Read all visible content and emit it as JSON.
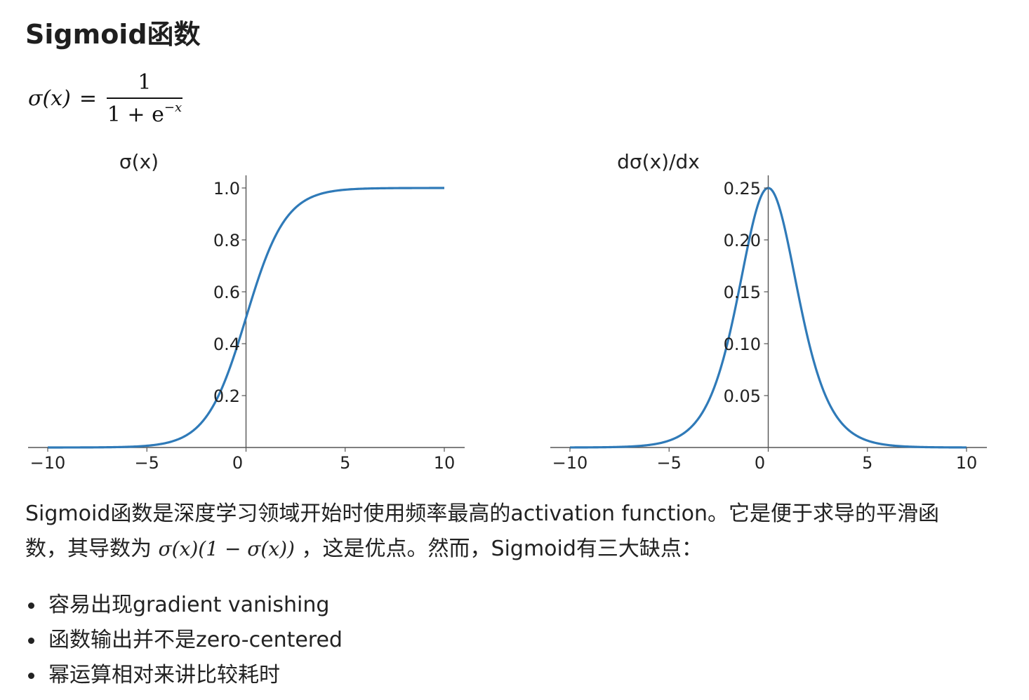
{
  "heading": "Sigmoid函数",
  "formula": {
    "lhs": "σ(x)",
    "eq": "=",
    "numerator": "1",
    "denominator_base": "1 + e",
    "denominator_exp": "−x"
  },
  "chart_data": [
    {
      "type": "line",
      "title": "σ(x)",
      "function": "sigmoid",
      "xlim": [
        -10,
        10
      ],
      "ylim": [
        0,
        1.0
      ],
      "x_ticks": [
        -10,
        -5,
        0,
        5,
        10
      ],
      "x_tick_labels": [
        "−10",
        "−5",
        "0",
        "5",
        "10"
      ],
      "y_ticks": [
        0.2,
        0.4,
        0.6,
        0.8,
        1.0
      ],
      "y_tick_labels": [
        "0.2",
        "0.4",
        "0.6",
        "0.8",
        "1.0"
      ],
      "spines": "centered-at-origin",
      "grid": false,
      "color": "#2f7ab8",
      "x": [
        -10,
        -8,
        -6,
        -5,
        -4,
        -3,
        -2,
        -1,
        0,
        1,
        2,
        3,
        4,
        5,
        6,
        8,
        10
      ],
      "y": [
        5e-05,
        0.0003,
        0.0025,
        0.0067,
        0.018,
        0.047,
        0.119,
        0.269,
        0.5,
        0.731,
        0.881,
        0.953,
        0.982,
        0.9933,
        0.9975,
        0.9997,
        0.99995
      ]
    },
    {
      "type": "line",
      "title": "dσ(x)/dx",
      "function": "sigmoid_derivative",
      "xlim": [
        -10,
        10
      ],
      "ylim": [
        0,
        0.25
      ],
      "x_ticks": [
        -10,
        -5,
        0,
        5,
        10
      ],
      "x_tick_labels": [
        "−10",
        "−5",
        "0",
        "5",
        "10"
      ],
      "y_ticks": [
        0.05,
        0.1,
        0.15,
        0.2,
        0.25
      ],
      "y_tick_labels": [
        "0.05",
        "0.10",
        "0.15",
        "0.20",
        "0.25"
      ],
      "spines": "centered-at-origin",
      "grid": false,
      "color": "#2f7ab8",
      "x": [
        -10,
        -8,
        -6,
        -5,
        -4,
        -3,
        -2,
        -1,
        0,
        1,
        2,
        3,
        4,
        5,
        6,
        8,
        10
      ],
      "y": [
        5e-05,
        0.0003,
        0.0025,
        0.0066,
        0.0177,
        0.0452,
        0.105,
        0.1966,
        0.25,
        0.1966,
        0.105,
        0.0452,
        0.0177,
        0.0066,
        0.0025,
        0.0003,
        5e-05
      ]
    }
  ],
  "paragraph": {
    "line1": "Sigmoid函数是深度学习领域开始时使用频率最高的activation function。它是便于求导的平滑函",
    "line2_before": "数，其导数为 ",
    "line2_math": "σ(x)(1 − σ(x))",
    "line2_after": " ，这是优点。然而，Sigmoid有三大缺点："
  },
  "bullets": [
    "容易出现gradient vanishing",
    "函数输出并不是zero-centered",
    "幂运算相对来讲比较耗时"
  ]
}
